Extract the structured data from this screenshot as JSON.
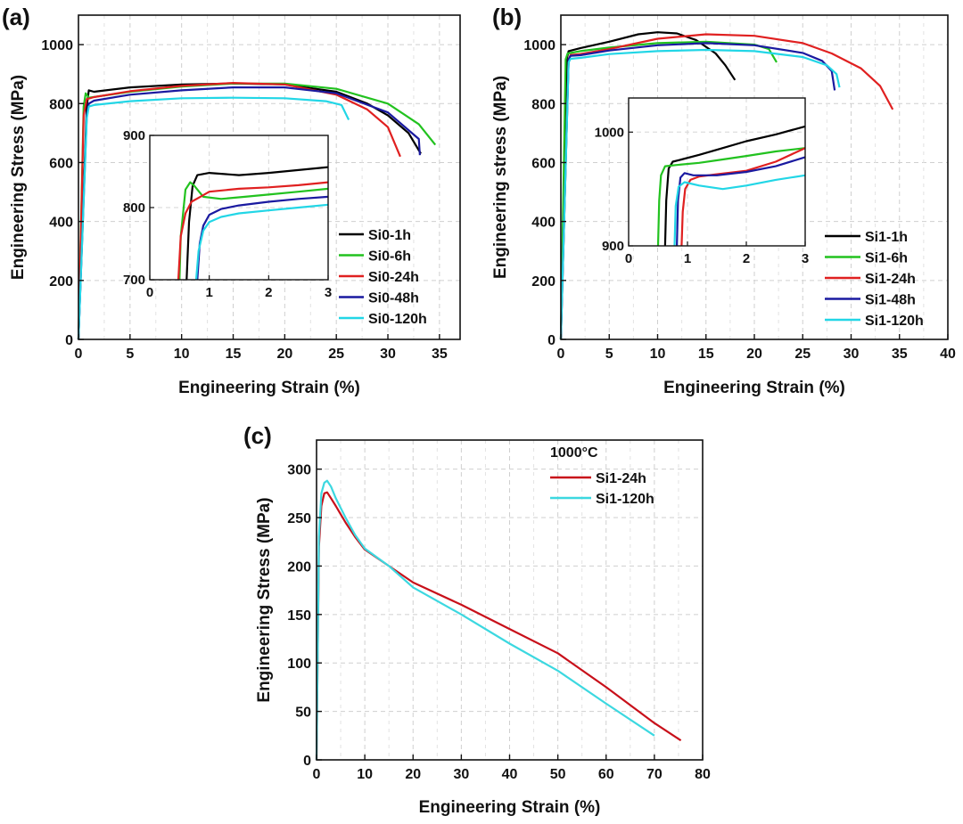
{
  "chart_data": [
    {
      "panel": "(a)",
      "type": "line",
      "xlabel": "Engineering Strain (%)",
      "ylabel": "Engineering Stress (MPa)",
      "xlim": [
        0,
        37
      ],
      "ylim": [
        0,
        1100
      ],
      "xticks": [
        0,
        5,
        10,
        15,
        20,
        25,
        30,
        35
      ],
      "yticks": [
        0,
        200,
        400,
        600,
        800,
        1000
      ],
      "grid": true,
      "legend_position": "lower-right",
      "series": [
        {
          "name": "Si0-1h",
          "color": "#000000",
          "x": [
            0,
            0.8,
            1.0,
            1.5,
            5,
            10,
            15,
            20,
            25,
            28,
            30,
            32,
            33.2
          ],
          "y": [
            0,
            790,
            845,
            840,
            855,
            865,
            868,
            865,
            840,
            800,
            760,
            700,
            630
          ]
        },
        {
          "name": "Si0-6h",
          "color": "#22c21f",
          "x": [
            0,
            0.5,
            0.7,
            1.0,
            5,
            10,
            15,
            20,
            25,
            30,
            33,
            34.6
          ],
          "y": [
            0,
            790,
            835,
            820,
            840,
            858,
            868,
            868,
            850,
            800,
            730,
            660
          ]
        },
        {
          "name": "Si0-24h",
          "color": "#e02020",
          "x": [
            0,
            0.5,
            0.8,
            1.5,
            5,
            10,
            15,
            20,
            25,
            28,
            30,
            31.2
          ],
          "y": [
            0,
            760,
            815,
            822,
            842,
            860,
            870,
            865,
            830,
            780,
            720,
            620
          ]
        },
        {
          "name": "Si0-48h",
          "color": "#1a1aa0",
          "x": [
            0,
            0.8,
            1.0,
            1.5,
            5,
            10,
            15,
            20,
            25,
            30,
            33,
            33.1
          ],
          "y": [
            0,
            760,
            800,
            810,
            830,
            845,
            855,
            855,
            835,
            770,
            680,
            625
          ]
        },
        {
          "name": "Si0-120h",
          "color": "#22d6e6",
          "x": [
            0,
            0.8,
            1.0,
            1.5,
            5,
            10,
            15,
            20,
            24,
            25.5,
            26.2
          ],
          "y": [
            0,
            750,
            790,
            795,
            808,
            818,
            820,
            818,
            808,
            795,
            745
          ]
        }
      ],
      "inset": {
        "xlim": [
          0,
          3
        ],
        "ylim": [
          700,
          900
        ],
        "xticks": [
          0,
          1,
          2,
          3
        ],
        "yticks": [
          700,
          800,
          900
        ],
        "series": [
          {
            "name": "Si0-1h",
            "color": "#000000",
            "x": [
              0.62,
              0.66,
              0.72,
              0.8,
              1.0,
              1.5,
              2.0,
              2.5,
              3.0
            ],
            "y": [
              700,
              780,
              830,
              845,
              848,
              845,
              848,
              852,
              856
            ]
          },
          {
            "name": "Si0-6h",
            "color": "#22c21f",
            "x": [
              0.5,
              0.52,
              0.6,
              0.68,
              0.75,
              0.9,
              1.2,
              1.6,
              2.0,
              2.5,
              3.0
            ],
            "y": [
              700,
              760,
              825,
              835,
              830,
              815,
              812,
              815,
              818,
              822,
              826
            ]
          },
          {
            "name": "Si0-24h",
            "color": "#e02020",
            "x": [
              0.48,
              0.52,
              0.6,
              0.7,
              0.85,
              1.0,
              1.5,
              2.0,
              2.5,
              3.0
            ],
            "y": [
              700,
              760,
              792,
              808,
              815,
              822,
              826,
              828,
              831,
              835
            ]
          },
          {
            "name": "Si0-48h",
            "color": "#1a1aa0",
            "x": [
              0.8,
              0.84,
              0.9,
              1.0,
              1.2,
              1.5,
              2.0,
              2.5,
              3.0
            ],
            "y": [
              700,
              750,
              775,
              790,
              798,
              803,
              808,
              812,
              815
            ]
          },
          {
            "name": "Si0-120h",
            "color": "#22d6e6",
            "x": [
              0.78,
              0.82,
              0.9,
              1.0,
              1.2,
              1.5,
              2.0,
              2.5,
              3.0
            ],
            "y": [
              700,
              740,
              768,
              780,
              787,
              792,
              796,
              800,
              804
            ]
          }
        ]
      }
    },
    {
      "panel": "(b)",
      "type": "line",
      "xlabel": "Engineering Strain (%)",
      "ylabel": "Engineering stress (MPa)",
      "xlim": [
        0,
        40
      ],
      "ylim": [
        0,
        1100
      ],
      "xticks": [
        0,
        5,
        10,
        15,
        20,
        25,
        30,
        35,
        40
      ],
      "yticks": [
        0,
        200,
        400,
        600,
        800,
        1000
      ],
      "grid": true,
      "legend_position": "lower-right",
      "series": [
        {
          "name": "Si1-1h",
          "color": "#000000",
          "x": [
            0,
            0.6,
            0.8,
            2,
            5,
            8,
            10,
            12,
            14,
            16,
            17,
            18
          ],
          "y": [
            0,
            950,
            978,
            988,
            1010,
            1035,
            1042,
            1038,
            1015,
            970,
            930,
            880
          ]
        },
        {
          "name": "Si1-6h",
          "color": "#22c21f",
          "x": [
            0,
            0.5,
            0.7,
            2,
            5,
            10,
            15,
            20,
            21.5,
            22.3
          ],
          "y": [
            0,
            950,
            970,
            978,
            990,
            1005,
            1010,
            1000,
            985,
            940
          ]
        },
        {
          "name": "Si1-24h",
          "color": "#e02020",
          "x": [
            0,
            0.8,
            1.0,
            2,
            5,
            10,
            15,
            20,
            25,
            28,
            31,
            33,
            34.3
          ],
          "y": [
            0,
            950,
            965,
            968,
            985,
            1020,
            1035,
            1030,
            1005,
            970,
            920,
            860,
            780
          ]
        },
        {
          "name": "Si1-48h",
          "color": "#1a1aa0",
          "x": [
            0,
            0.8,
            1.0,
            2,
            5,
            10,
            15,
            20,
            25,
            27,
            28,
            28.3
          ],
          "y": [
            0,
            950,
            962,
            964,
            980,
            998,
            1005,
            998,
            972,
            945,
            910,
            845
          ]
        },
        {
          "name": "Si1-120h",
          "color": "#22d6e6",
          "x": [
            0,
            0.8,
            1.0,
            2,
            5,
            10,
            15,
            20,
            25,
            27.5,
            28.5,
            28.8
          ],
          "y": [
            0,
            940,
            952,
            955,
            968,
            978,
            982,
            978,
            958,
            930,
            900,
            855
          ]
        }
      ],
      "inset": {
        "xlim": [
          0,
          3
        ],
        "ylim": [
          900,
          1030
        ],
        "xticks": [
          0,
          1,
          2,
          3
        ],
        "yticks": [
          900,
          1000
        ],
        "series": [
          {
            "name": "Si1-1h",
            "color": "#000000",
            "x": [
              0.62,
              0.64,
              0.68,
              0.75,
              0.9,
              1.2,
              1.6,
              2.0,
              2.5,
              3.0
            ],
            "y": [
              900,
              940,
              968,
              974,
              976,
              980,
              986,
              992,
              998,
              1005
            ]
          },
          {
            "name": "Si1-6h",
            "color": "#22c21f",
            "x": [
              0.5,
              0.52,
              0.55,
              0.62,
              0.8,
              1.2,
              1.6,
              2.0,
              2.5,
              3.0
            ],
            "y": [
              900,
              940,
              962,
              970,
              971,
              973,
              976,
              979,
              983,
              986
            ]
          },
          {
            "name": "Si1-24h",
            "color": "#e02020",
            "x": [
              0.9,
              0.92,
              0.96,
              1.05,
              1.2,
              1.5,
              2.0,
              2.5,
              3.0
            ],
            "y": [
              900,
              930,
              950,
              958,
              961,
              963,
              966,
              974,
              986
            ]
          },
          {
            "name": "Si1-48h",
            "color": "#1a1aa0",
            "x": [
              0.82,
              0.84,
              0.88,
              0.95,
              1.1,
              1.5,
              2.0,
              2.5,
              3.0
            ],
            "y": [
              900,
              940,
              960,
              964,
              962,
              962,
              965,
              970,
              978
            ]
          },
          {
            "name": "Si1-120h",
            "color": "#22d6e6",
            "x": [
              0.78,
              0.8,
              0.85,
              0.95,
              1.2,
              1.6,
              2.0,
              2.5,
              3.0
            ],
            "y": [
              900,
              935,
              952,
              956,
              953,
              950,
              953,
              958,
              962
            ]
          }
        ]
      }
    },
    {
      "panel": "(c)",
      "type": "line",
      "xlabel": "Engineering Strain (%)",
      "ylabel": "Engineering Stress (MPa)",
      "legend_title": "1000°C",
      "xlim": [
        0,
        80
      ],
      "ylim": [
        0,
        330
      ],
      "xticks": [
        0,
        10,
        20,
        30,
        40,
        50,
        60,
        70,
        80
      ],
      "yticks": [
        0,
        50,
        100,
        150,
        200,
        250,
        300
      ],
      "grid": true,
      "legend_position": "top-right",
      "series": [
        {
          "name": "Si1-24h",
          "color": "#c8101a",
          "x": [
            0,
            0.5,
            1.0,
            1.6,
            2.2,
            3,
            4,
            6,
            8,
            10,
            15,
            20,
            30,
            40,
            50,
            60,
            70,
            75.5
          ],
          "y": [
            0,
            220,
            262,
            275,
            276,
            270,
            262,
            245,
            230,
            217,
            200,
            183,
            160,
            135,
            110,
            75,
            38,
            20
          ]
        },
        {
          "name": "Si1-120h",
          "color": "#3cd8e0",
          "x": [
            0,
            0.5,
            1.0,
            1.6,
            2.2,
            3,
            4,
            6,
            8,
            10,
            15,
            20,
            30,
            40,
            50,
            60,
            70
          ],
          "y": [
            0,
            230,
            275,
            286,
            288,
            282,
            270,
            250,
            232,
            218,
            200,
            178,
            150,
            120,
            92,
            58,
            25
          ]
        }
      ]
    }
  ]
}
